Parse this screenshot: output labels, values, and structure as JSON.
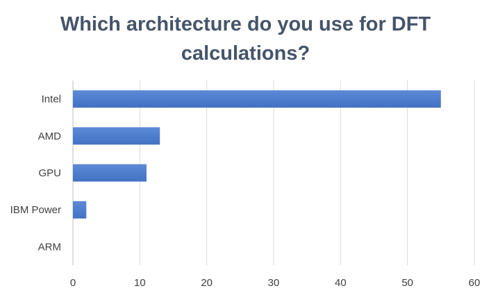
{
  "chart_data": {
    "type": "bar",
    "orientation": "horizontal",
    "title_lines": [
      "Which architecture do you use for DFT",
      "calculations?"
    ],
    "categories": [
      "Intel",
      "AMD",
      "GPU",
      "IBM Power",
      "ARM"
    ],
    "values": [
      55,
      13,
      11,
      2,
      0
    ],
    "xlabel": "",
    "ylabel": "",
    "xlim": [
      0,
      60
    ],
    "x_ticks": [
      0,
      10,
      20,
      30,
      40,
      50,
      60
    ],
    "grid": "vertical",
    "legend": "none",
    "bar_color": "#4472c4",
    "bar_color_light": "#5b8ad6",
    "grid_color": "#d9d9d9",
    "title_color": "#44546a"
  }
}
